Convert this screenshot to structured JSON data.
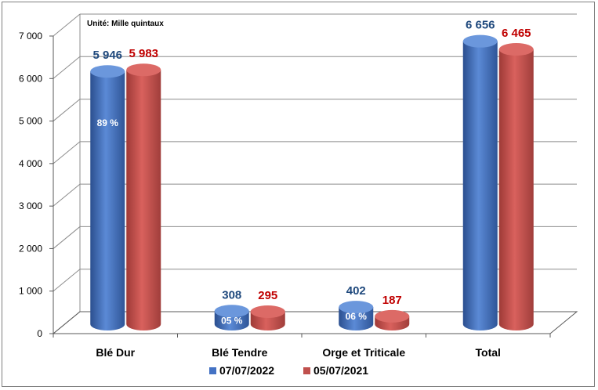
{
  "chart_data": {
    "type": "bar",
    "unit_note": "Unité: Mille quintaux",
    "categories": [
      "Blé Dur",
      "Blé Tendre",
      "Orge et Triticale",
      "Total"
    ],
    "series": [
      {
        "name": "07/07/2022",
        "color": "#4472c4",
        "label_color": "#1f497d",
        "values": [
          5946,
          308,
          402,
          6656
        ],
        "value_labels": [
          "5 946",
          "308",
          "402",
          "6 656"
        ],
        "share_labels": [
          "89 %",
          "05 %",
          "06 %",
          ""
        ]
      },
      {
        "name": "05/07/2021",
        "color": "#c0504d",
        "label_color": "#c00000",
        "values": [
          5983,
          295,
          187,
          6465
        ],
        "value_labels": [
          "5 983",
          "295",
          "187",
          "6 465"
        ]
      }
    ],
    "y_ticks": [
      "0",
      "1 000",
      "2 000",
      "3 000",
      "4 000",
      "5 000",
      "6 000",
      "7 000"
    ],
    "ylim": [
      0,
      7000
    ],
    "grid": true,
    "legend": "bottom"
  }
}
